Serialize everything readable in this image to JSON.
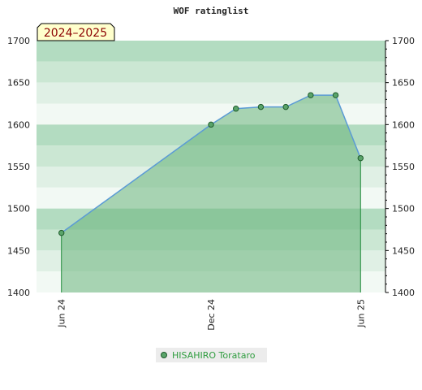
{
  "chart_data": {
    "type": "area",
    "title": "WOF ratinglist",
    "badge": "2024–2025",
    "x_ticks": [
      "Jun 24",
      "Dec 24",
      "Jun 25"
    ],
    "y_ticks": [
      1400,
      1450,
      1500,
      1550,
      1600,
      1650,
      1700
    ],
    "ylim": [
      1400,
      1700
    ],
    "xlim": [
      "2024-05",
      "2025-07"
    ],
    "grid": true,
    "legend_position": "bottom",
    "series": [
      {
        "name": "HISAHIRO Torataro",
        "x": [
          "2024-06",
          "2024-12",
          "2025-01",
          "2025-02",
          "2025-03",
          "2025-04",
          "2025-05",
          "2025-06"
        ],
        "values": [
          1471,
          1600,
          1619,
          1621,
          1621,
          1635,
          1635,
          1560
        ]
      }
    ],
    "colors": {
      "line": "#5b9bd5",
      "fill": "#6ab47b",
      "marker_fill": "#5aa46a",
      "marker_stroke": "#1e5a2b",
      "badge_bg": "#ffffcc",
      "badge_text": "#8b0000",
      "legend_text": "#2e9c3e"
    }
  }
}
